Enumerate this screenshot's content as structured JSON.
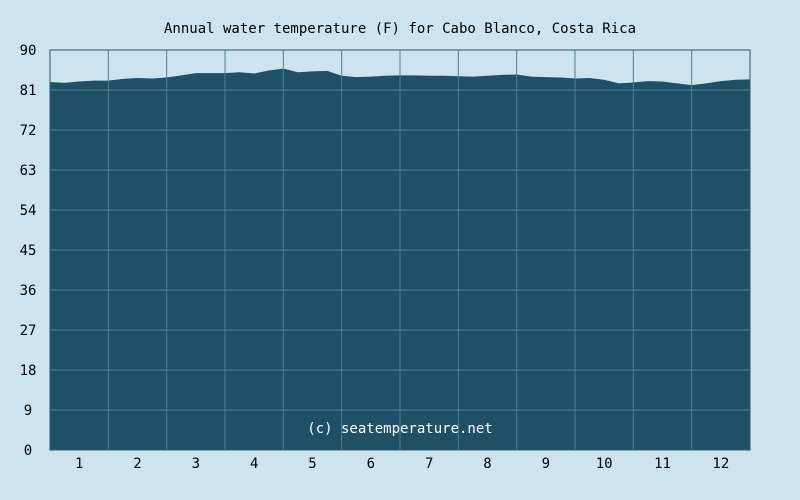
{
  "chart_data": {
    "type": "area",
    "title": "Annual water temperature (F) for Cabo Blanco, Costa Rica",
    "xlabel": "",
    "ylabel": "",
    "x_ticks": [
      "1",
      "2",
      "3",
      "4",
      "5",
      "6",
      "7",
      "8",
      "9",
      "10",
      "11",
      "12"
    ],
    "y_ticks": [
      "0",
      "9",
      "18",
      "27",
      "36",
      "45",
      "54",
      "63",
      "72",
      "81",
      "90"
    ],
    "xlim": [
      0.5,
      12.5
    ],
    "ylim": [
      0,
      90
    ],
    "grid": true,
    "credit": "(c) seatemperature.net",
    "colors": {
      "fill": "#1f5068",
      "grid": "#4f7f98",
      "plot_border": "#2c5a70",
      "background": "#cde3ef"
    },
    "series": [
      {
        "x": [
          0.5,
          0.75,
          1.0,
          1.25,
          1.5,
          1.75,
          2.0,
          2.25,
          2.5,
          2.75,
          3.0,
          3.25,
          3.5,
          3.75,
          4.0,
          4.25,
          4.5,
          4.75,
          5.0,
          5.25,
          5.5,
          5.75,
          6.0,
          6.25,
          6.5,
          6.75,
          7.0,
          7.25,
          7.5,
          7.75,
          8.0,
          8.25,
          8.5,
          8.75,
          9.0,
          9.25,
          9.5,
          9.75,
          10.0,
          10.25,
          10.5,
          10.75,
          11.0,
          11.25,
          11.5,
          11.75,
          12.0,
          12.25,
          12.5
        ],
        "values": [
          82.8,
          82.6,
          82.9,
          83.1,
          83.1,
          83.5,
          83.7,
          83.6,
          83.8,
          84.3,
          84.8,
          84.8,
          84.8,
          85.0,
          84.7,
          85.4,
          85.8,
          85.0,
          85.2,
          85.3,
          84.2,
          83.9,
          84.0,
          84.2,
          84.3,
          84.3,
          84.2,
          84.2,
          84.1,
          84.0,
          84.2,
          84.4,
          84.5,
          84.0,
          83.9,
          83.8,
          83.6,
          83.7,
          83.3,
          82.5,
          82.7,
          83.0,
          82.9,
          82.5,
          82.1,
          82.5,
          83.0,
          83.3,
          83.4
        ]
      }
    ]
  }
}
